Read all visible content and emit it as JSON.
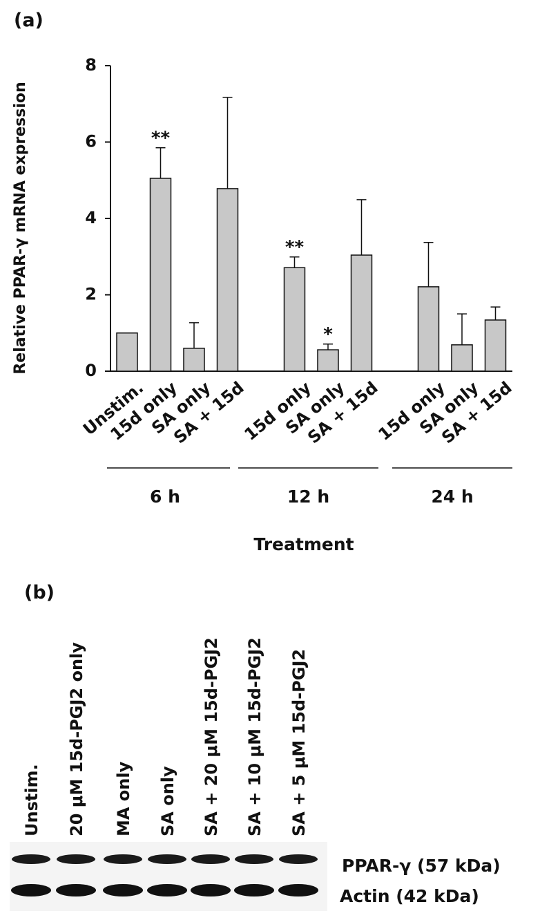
{
  "chart_data": {
    "type": "bar",
    "panel": "(a)",
    "ylabel": "Relative PPAR-γ mRNA expression",
    "xlabel": "Treatment",
    "categories": [
      "Unstim.",
      "15d only",
      "SA only",
      "SA + 15d",
      null,
      "15d only",
      "SA only",
      "SA + 15d",
      null,
      "15d only",
      "SA only",
      "SA + 15d"
    ],
    "values": [
      1.0,
      5.05,
      0.6,
      4.78,
      null,
      2.71,
      0.56,
      3.04,
      null,
      2.21,
      0.69,
      1.34
    ],
    "errors": [
      null,
      0.8,
      0.67,
      2.39,
      null,
      0.28,
      0.15,
      1.45,
      null,
      1.16,
      0.81,
      0.34
    ],
    "significance": [
      null,
      "**",
      null,
      null,
      null,
      "**",
      "*",
      null,
      null,
      null,
      null,
      null
    ],
    "groups": [
      "6 h",
      "12 h",
      "24 h"
    ],
    "color": "#c8c8c8",
    "ylim": [
      0,
      8
    ],
    "yticks": [
      0,
      2,
      4,
      6,
      8
    ]
  },
  "blot": {
    "panel": "(b)",
    "lanes": [
      "Unstim.",
      "20 μM 15d-PGJ2 only",
      "MA only",
      "SA only",
      "SA + 20 μM 15d-PGJ2",
      "SA + 10 μM 15d-PGJ2",
      "SA + 5 μM 15d-PGJ2"
    ],
    "bands": [
      "PPAR-γ (57 kDa)",
      "Actin (42 kDa)"
    ]
  }
}
